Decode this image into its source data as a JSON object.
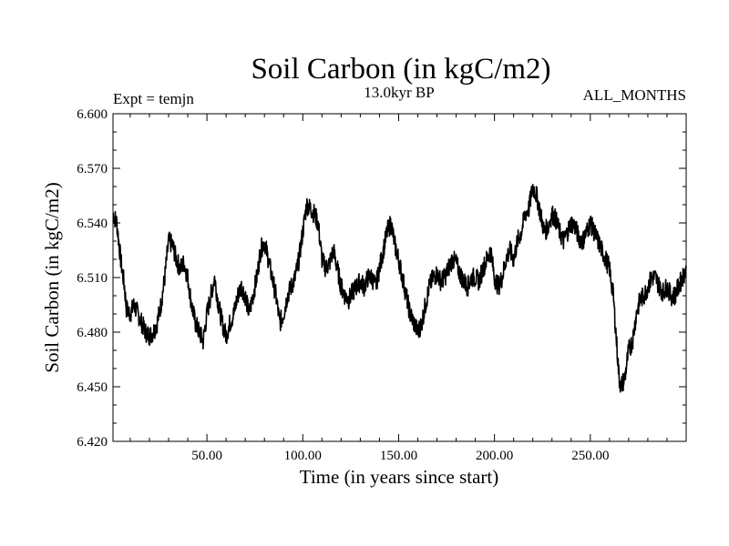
{
  "chart_data": {
    "type": "line",
    "title": "Soil Carbon (in kgC/m2)",
    "subtitle_left": "Expt = temjn",
    "subtitle_center": "13.0kyr BP",
    "subtitle_right": "ALL_MONTHS",
    "xlabel": "Time (in years since start)",
    "ylabel": "Soil Carbon (in kgC/m2)",
    "xlim": [
      1,
      300
    ],
    "ylim": [
      6.42,
      6.6
    ],
    "x_ticks": [
      50,
      100,
      150,
      200,
      250
    ],
    "x_tick_labels": [
      "50.00",
      "100.00",
      "150.00",
      "200.00",
      "250.00"
    ],
    "y_ticks": [
      6.42,
      6.45,
      6.48,
      6.51,
      6.54,
      6.57,
      6.6
    ],
    "y_tick_labels": [
      "6.420",
      "6.450",
      "6.480",
      "6.510",
      "6.540",
      "6.570",
      "6.600"
    ],
    "grid": false,
    "series": [
      {
        "name": "Soil Carbon",
        "color": "#000000",
        "x": [
          1,
          3,
          5,
          7,
          8,
          10,
          12,
          14,
          16,
          18,
          20,
          22,
          24,
          26,
          28,
          30,
          32,
          34,
          36,
          38,
          40,
          42,
          44,
          46,
          48,
          50,
          52,
          54,
          56,
          58,
          60,
          62,
          64,
          66,
          68,
          70,
          72,
          74,
          76,
          78,
          80,
          82,
          84,
          86,
          88,
          90,
          92,
          94,
          96,
          98,
          100,
          102,
          104,
          106,
          108,
          110,
          112,
          114,
          116,
          118,
          120,
          122,
          124,
          126,
          128,
          130,
          132,
          134,
          136,
          138,
          140,
          142,
          144,
          146,
          148,
          150,
          152,
          154,
          156,
          158,
          160,
          162,
          164,
          166,
          168,
          170,
          172,
          174,
          176,
          178,
          180,
          182,
          184,
          186,
          188,
          190,
          192,
          194,
          196,
          198,
          200,
          202,
          204,
          206,
          208,
          210,
          212,
          214,
          216,
          218,
          220,
          222,
          224,
          226,
          228,
          230,
          232,
          234,
          236,
          238,
          240,
          242,
          244,
          246,
          248,
          250,
          252,
          254,
          256,
          258,
          260,
          262,
          264,
          265,
          266,
          268,
          270,
          272,
          274,
          276,
          278,
          280,
          282,
          284,
          286,
          288,
          290,
          292,
          294,
          296,
          298,
          300
        ],
        "values": [
          6.545,
          6.54,
          6.52,
          6.505,
          6.493,
          6.49,
          6.495,
          6.49,
          6.485,
          6.48,
          6.478,
          6.48,
          6.485,
          6.495,
          6.51,
          6.53,
          6.528,
          6.52,
          6.515,
          6.518,
          6.51,
          6.495,
          6.485,
          6.48,
          6.475,
          6.49,
          6.5,
          6.51,
          6.495,
          6.485,
          6.478,
          6.485,
          6.49,
          6.5,
          6.505,
          6.5,
          6.49,
          6.5,
          6.51,
          6.525,
          6.53,
          6.52,
          6.51,
          6.5,
          6.485,
          6.49,
          6.5,
          6.505,
          6.51,
          6.52,
          6.535,
          6.55,
          6.548,
          6.545,
          6.54,
          6.52,
          6.515,
          6.518,
          6.525,
          6.515,
          6.505,
          6.5,
          6.498,
          6.502,
          6.505,
          6.508,
          6.505,
          6.51,
          6.51,
          6.505,
          6.515,
          6.525,
          6.535,
          6.54,
          6.528,
          6.52,
          6.51,
          6.5,
          6.49,
          6.485,
          6.48,
          6.485,
          6.495,
          6.505,
          6.51,
          6.512,
          6.508,
          6.51,
          6.515,
          6.52,
          6.518,
          6.512,
          6.508,
          6.505,
          6.51,
          6.51,
          6.508,
          6.515,
          6.52,
          6.525,
          6.51,
          6.505,
          6.51,
          6.52,
          6.525,
          6.52,
          6.53,
          6.535,
          6.545,
          6.548,
          6.56,
          6.555,
          6.545,
          6.535,
          6.538,
          6.545,
          6.542,
          6.535,
          6.53,
          6.535,
          6.54,
          6.538,
          6.532,
          6.53,
          6.535,
          6.54,
          6.535,
          6.53,
          6.525,
          6.52,
          6.515,
          6.5,
          6.47,
          6.455,
          6.45,
          6.455,
          6.47,
          6.475,
          6.49,
          6.498,
          6.5,
          6.505,
          6.51,
          6.51,
          6.505,
          6.502,
          6.505,
          6.5,
          6.5,
          6.505,
          6.51,
          6.515
        ]
      }
    ]
  }
}
